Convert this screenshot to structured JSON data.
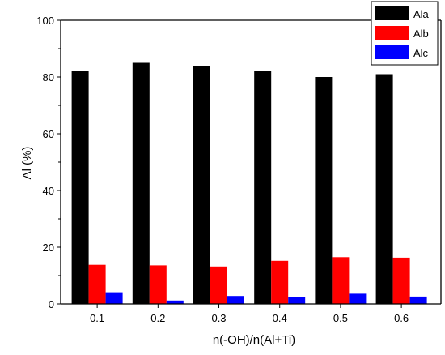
{
  "chart_data": {
    "type": "bar",
    "title": "",
    "xlabel": "n(-OH)/n(Al+Ti)",
    "ylabel": "Al (%)",
    "categories": [
      "0.1",
      "0.2",
      "0.3",
      "0.4",
      "0.5",
      "0.6"
    ],
    "ylim": [
      0,
      100
    ],
    "yticks": [
      "0",
      "20",
      "40",
      "60",
      "80",
      "100"
    ],
    "grid": false,
    "legend_position": "top-right",
    "series": [
      {
        "name": "Ala",
        "color": "#000000",
        "values": [
          82.0,
          85.0,
          84.0,
          82.2,
          80.0,
          81.0
        ]
      },
      {
        "name": "Alb",
        "color": "#ff0000",
        "values": [
          13.8,
          13.6,
          13.2,
          15.2,
          16.5,
          16.3
        ]
      },
      {
        "name": "Alc",
        "color": "#0000ff",
        "values": [
          4.1,
          1.2,
          2.8,
          2.5,
          3.6,
          2.6
        ]
      }
    ]
  }
}
